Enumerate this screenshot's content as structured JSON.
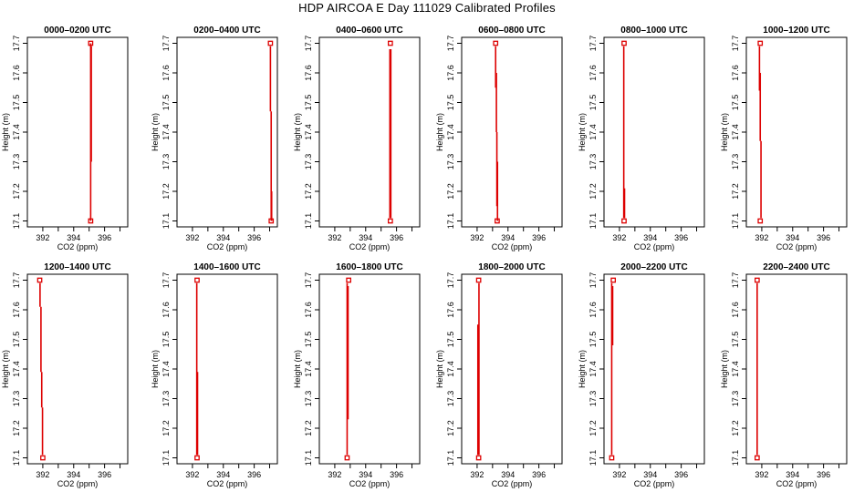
{
  "figure_title": "HDP AIRCOA E  Day 111029  Calibrated Profiles",
  "colors": {
    "profile": "#dd0000",
    "axes": "#000000",
    "background": "#ffffff"
  },
  "chart_data": [
    {
      "type": "line",
      "title": "0000–0200 UTC",
      "xlabel": "CO2 (ppm)",
      "ylabel": "Height (m)",
      "xlim": [
        391,
        397.5
      ],
      "ylim": [
        17.08,
        17.72
      ],
      "xticks": [
        392,
        394,
        396
      ],
      "yticks": [
        17.1,
        17.2,
        17.3,
        17.4,
        17.5,
        17.6,
        17.7
      ],
      "points": [
        {
          "x": 395.1,
          "y": 17.1
        },
        {
          "x": 395.1,
          "y": 17.7
        }
      ],
      "lines": [
        {
          "x": 395.1,
          "y1": 17.1,
          "y2": 17.7
        },
        {
          "x": 395.14,
          "y1": 17.3,
          "y2": 17.69
        }
      ]
    },
    {
      "type": "line",
      "title": "0200–0400 UTC",
      "xlabel": "CO2 (ppm)",
      "ylabel": "Height (m)",
      "xlim": [
        391,
        397.5
      ],
      "ylim": [
        17.08,
        17.72
      ],
      "xticks": [
        392,
        394,
        396
      ],
      "yticks": [
        17.1,
        17.2,
        17.3,
        17.4,
        17.5,
        17.6,
        17.7
      ],
      "points": [
        {
          "x": 397.1,
          "y": 17.1
        },
        {
          "x": 397.05,
          "y": 17.7
        }
      ],
      "lines": [
        {
          "x": 397.05,
          "y1": 17.47,
          "y2": 17.69
        },
        {
          "x": 397.1,
          "y1": 17.1,
          "y2": 17.47
        },
        {
          "x": 397.13,
          "y1": 17.1,
          "y2": 17.2
        }
      ]
    },
    {
      "type": "line",
      "title": "0400–0600 UTC",
      "xlabel": "CO2 (ppm)",
      "ylabel": "Height (m)",
      "xlim": [
        391,
        397.5
      ],
      "ylim": [
        17.08,
        17.72
      ],
      "xticks": [
        392,
        394,
        396
      ],
      "yticks": [
        17.1,
        17.2,
        17.3,
        17.4,
        17.5,
        17.6,
        17.7
      ],
      "points": [
        {
          "x": 395.6,
          "y": 17.1
        },
        {
          "x": 395.6,
          "y": 17.7
        }
      ],
      "lines": [
        {
          "x": 395.57,
          "y1": 17.11,
          "y2": 17.68
        },
        {
          "x": 395.63,
          "y1": 17.11,
          "y2": 17.68
        }
      ]
    },
    {
      "type": "line",
      "title": "0600–0800 UTC",
      "xlabel": "CO2 (ppm)",
      "ylabel": "Height (m)",
      "xlim": [
        391,
        397.5
      ],
      "ylim": [
        17.08,
        17.72
      ],
      "xticks": [
        392,
        394,
        396
      ],
      "yticks": [
        17.1,
        17.2,
        17.3,
        17.4,
        17.5,
        17.6,
        17.7
      ],
      "points": [
        {
          "x": 393.3,
          "y": 17.1
        },
        {
          "x": 393.2,
          "y": 17.7
        }
      ],
      "lines": [
        {
          "x": 393.2,
          "y1": 17.55,
          "y2": 17.69
        },
        {
          "x": 393.25,
          "y1": 17.4,
          "y2": 17.6
        },
        {
          "x": 393.28,
          "y1": 17.15,
          "y2": 17.4
        },
        {
          "x": 393.32,
          "y1": 17.1,
          "y2": 17.3
        }
      ]
    },
    {
      "type": "line",
      "title": "0800–1000 UTC",
      "xlabel": "CO2 (ppm)",
      "ylabel": "Height (m)",
      "xlim": [
        391,
        397.5
      ],
      "ylim": [
        17.08,
        17.72
      ],
      "xticks": [
        392,
        394,
        396
      ],
      "yticks": [
        17.1,
        17.2,
        17.3,
        17.4,
        17.5,
        17.6,
        17.7
      ],
      "points": [
        {
          "x": 392.3,
          "y": 17.1
        },
        {
          "x": 392.3,
          "y": 17.7
        }
      ],
      "lines": [
        {
          "x": 392.28,
          "y1": 17.11,
          "y2": 17.69
        },
        {
          "x": 392.33,
          "y1": 17.11,
          "y2": 17.21
        }
      ]
    },
    {
      "type": "line",
      "title": "1000–1200 UTC",
      "xlabel": "CO2 (ppm)",
      "ylabel": "Height (m)",
      "xlim": [
        391,
        397.5
      ],
      "ylim": [
        17.08,
        17.72
      ],
      "xticks": [
        392,
        394,
        396
      ],
      "yticks": [
        17.1,
        17.2,
        17.3,
        17.4,
        17.5,
        17.6,
        17.7
      ],
      "points": [
        {
          "x": 391.9,
          "y": 17.1
        },
        {
          "x": 391.9,
          "y": 17.7
        }
      ],
      "lines": [
        {
          "x": 391.85,
          "y1": 17.54,
          "y2": 17.69
        },
        {
          "x": 391.9,
          "y1": 17.37,
          "y2": 17.6
        },
        {
          "x": 391.95,
          "y1": 17.11,
          "y2": 17.37
        }
      ]
    },
    {
      "type": "line",
      "title": "1200–1400 UTC",
      "xlabel": "CO2 (ppm)",
      "ylabel": "Height (m)",
      "xlim": [
        391,
        397.5
      ],
      "ylim": [
        17.08,
        17.72
      ],
      "xticks": [
        392,
        394,
        396
      ],
      "yticks": [
        17.1,
        17.2,
        17.3,
        17.4,
        17.5,
        17.6,
        17.7
      ],
      "points": [
        {
          "x": 392.0,
          "y": 17.1
        },
        {
          "x": 391.8,
          "y": 17.7
        }
      ],
      "lines": [
        {
          "x": 391.82,
          "y1": 17.61,
          "y2": 17.69
        },
        {
          "x": 391.88,
          "y1": 17.39,
          "y2": 17.61
        },
        {
          "x": 391.93,
          "y1": 17.27,
          "y2": 17.39
        },
        {
          "x": 391.98,
          "y1": 17.11,
          "y2": 17.27
        }
      ]
    },
    {
      "type": "line",
      "title": "1400–1600 UTC",
      "xlabel": "CO2 (ppm)",
      "ylabel": "Height (m)",
      "xlim": [
        391,
        397.5
      ],
      "ylim": [
        17.08,
        17.72
      ],
      "xticks": [
        392,
        394,
        396
      ],
      "yticks": [
        17.1,
        17.2,
        17.3,
        17.4,
        17.5,
        17.6,
        17.7
      ],
      "points": [
        {
          "x": 392.3,
          "y": 17.1
        },
        {
          "x": 392.3,
          "y": 17.7
        }
      ],
      "lines": [
        {
          "x": 392.28,
          "y1": 17.11,
          "y2": 17.69
        },
        {
          "x": 392.33,
          "y1": 17.11,
          "y2": 17.39
        }
      ]
    },
    {
      "type": "line",
      "title": "1600–1800 UTC",
      "xlabel": "CO2 (ppm)",
      "ylabel": "Height (m)",
      "xlim": [
        391,
        397.5
      ],
      "ylim": [
        17.08,
        17.72
      ],
      "xticks": [
        392,
        394,
        396
      ],
      "yticks": [
        17.1,
        17.2,
        17.3,
        17.4,
        17.5,
        17.6,
        17.7
      ],
      "points": [
        {
          "x": 392.8,
          "y": 17.1
        },
        {
          "x": 392.9,
          "y": 17.7
        }
      ],
      "lines": [
        {
          "x": 392.8,
          "y1": 17.11,
          "y2": 17.69
        },
        {
          "x": 392.86,
          "y1": 17.23,
          "y2": 17.68
        }
      ]
    },
    {
      "type": "line",
      "title": "1800–2000 UTC",
      "xlabel": "CO2 (ppm)",
      "ylabel": "Height (m)",
      "xlim": [
        391,
        397.5
      ],
      "ylim": [
        17.08,
        17.72
      ],
      "xticks": [
        392,
        394,
        396
      ],
      "yticks": [
        17.1,
        17.2,
        17.3,
        17.4,
        17.5,
        17.6,
        17.7
      ],
      "points": [
        {
          "x": 392.1,
          "y": 17.1
        },
        {
          "x": 392.1,
          "y": 17.7
        }
      ],
      "lines": [
        {
          "x": 392.05,
          "y1": 17.11,
          "y2": 17.55
        },
        {
          "x": 392.12,
          "y1": 17.11,
          "y2": 17.69
        }
      ]
    },
    {
      "type": "line",
      "title": "2000–2200 UTC",
      "xlabel": "CO2 (ppm)",
      "ylabel": "Height (m)",
      "xlim": [
        391,
        397.5
      ],
      "ylim": [
        17.08,
        17.72
      ],
      "xticks": [
        392,
        394,
        396
      ],
      "yticks": [
        17.1,
        17.2,
        17.3,
        17.4,
        17.5,
        17.6,
        17.7
      ],
      "points": [
        {
          "x": 391.5,
          "y": 17.1
        },
        {
          "x": 391.6,
          "y": 17.7
        }
      ],
      "lines": [
        {
          "x": 391.5,
          "y1": 17.11,
          "y2": 17.69
        },
        {
          "x": 391.56,
          "y1": 17.48,
          "y2": 17.68
        }
      ]
    },
    {
      "type": "line",
      "title": "2200–2400 UTC",
      "xlabel": "CO2 (ppm)",
      "ylabel": "Height (m)",
      "xlim": [
        391,
        397.5
      ],
      "ylim": [
        17.08,
        17.72
      ],
      "xticks": [
        392,
        394,
        396
      ],
      "yticks": [
        17.1,
        17.2,
        17.3,
        17.4,
        17.5,
        17.6,
        17.7
      ],
      "points": [
        {
          "x": 391.7,
          "y": 17.1
        },
        {
          "x": 391.7,
          "y": 17.7
        }
      ],
      "lines": [
        {
          "x": 391.7,
          "y1": 17.11,
          "y2": 17.69
        }
      ]
    }
  ]
}
